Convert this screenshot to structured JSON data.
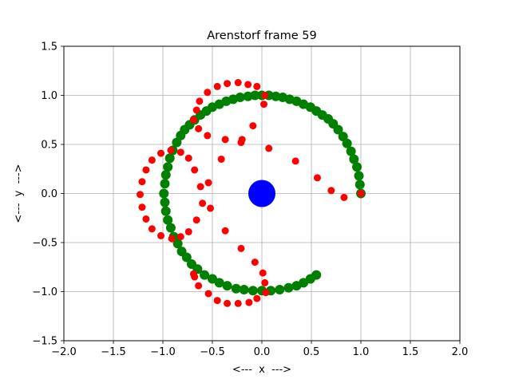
{
  "chart_data": {
    "type": "scatter",
    "title": "Arenstorf frame 59",
    "xlabel": "<---  x  --->",
    "ylabel": "<---  y  --->",
    "xlim": [
      -2.0,
      2.0
    ],
    "ylim": [
      -1.5,
      1.5
    ],
    "xticks": [
      -2.0,
      -1.5,
      -1.0,
      -0.5,
      0.0,
      0.5,
      1.0,
      1.5,
      2.0
    ],
    "yticks": [
      -1.5,
      -1.0,
      -0.5,
      0.0,
      0.5,
      1.0,
      1.5
    ],
    "xtick_labels": [
      "−2.0",
      "−1.5",
      "−1.0",
      "−0.5",
      "0.0",
      "0.5",
      "1.0",
      "1.5",
      "2.0"
    ],
    "ytick_labels": [
      "−1.5",
      "−1.0",
      "−0.5",
      "0.0",
      "0.5",
      "1.0",
      "1.5"
    ],
    "grid": true,
    "series": [
      {
        "color": "#008000",
        "marker_size": "medium",
        "points": [
          [
            1.0,
            0.0
          ],
          [
            0.99,
            0.09
          ],
          [
            0.98,
            0.18
          ],
          [
            0.96,
            0.27
          ],
          [
            0.93,
            0.35
          ],
          [
            0.9,
            0.43
          ],
          [
            0.86,
            0.51
          ],
          [
            0.82,
            0.58
          ],
          [
            0.77,
            0.65
          ],
          [
            0.72,
            0.71
          ],
          [
            0.67,
            0.76
          ],
          [
            0.61,
            0.8
          ],
          [
            0.55,
            0.84
          ],
          [
            0.49,
            0.88
          ],
          [
            0.42,
            0.91
          ],
          [
            0.35,
            0.94
          ],
          [
            0.28,
            0.96
          ],
          [
            0.21,
            0.98
          ],
          [
            0.14,
            0.99
          ],
          [
            0.07,
            1.0
          ],
          [
            0.0,
            1.0
          ],
          [
            -0.07,
            1.0
          ],
          [
            -0.14,
            0.99
          ],
          [
            -0.22,
            0.98
          ],
          [
            -0.29,
            0.96
          ],
          [
            -0.36,
            0.94
          ],
          [
            -0.43,
            0.91
          ],
          [
            -0.5,
            0.88
          ],
          [
            -0.56,
            0.84
          ],
          [
            -0.62,
            0.8
          ],
          [
            -0.68,
            0.75
          ],
          [
            -0.73,
            0.7
          ],
          [
            -0.78,
            0.65
          ],
          [
            -0.82,
            0.59
          ],
          [
            -0.86,
            0.52
          ],
          [
            -0.9,
            0.44
          ],
          [
            -0.93,
            0.36
          ],
          [
            -0.95,
            0.27
          ],
          [
            -0.97,
            0.19
          ],
          [
            -0.98,
            0.1
          ],
          [
            -0.99,
            0.0
          ],
          [
            -0.98,
            -0.09
          ],
          [
            -0.97,
            -0.18
          ],
          [
            -0.95,
            -0.27
          ],
          [
            -0.92,
            -0.35
          ],
          [
            -0.89,
            -0.44
          ],
          [
            -0.85,
            -0.51
          ],
          [
            -0.81,
            -0.59
          ],
          [
            -0.76,
            -0.65
          ],
          [
            -0.71,
            -0.72
          ],
          [
            -0.65,
            -0.77
          ],
          [
            -0.58,
            -0.83
          ],
          [
            -0.5,
            -0.87
          ],
          [
            -0.43,
            -0.91
          ],
          [
            -0.35,
            -0.94
          ],
          [
            -0.26,
            -0.97
          ],
          [
            -0.18,
            -0.98
          ],
          [
            -0.09,
            -0.99
          ],
          [
            0.0,
            -0.99
          ],
          [
            0.09,
            -0.99
          ],
          [
            0.18,
            -0.98
          ],
          [
            0.27,
            -0.96
          ],
          [
            0.35,
            -0.94
          ],
          [
            0.42,
            -0.91
          ],
          [
            0.49,
            -0.87
          ],
          [
            0.55,
            -0.83
          ]
        ]
      },
      {
        "color": "#ff0000",
        "marker_size": "small",
        "points": [
          [
            1.0,
            0.0
          ],
          [
            0.83,
            -0.04
          ],
          [
            0.7,
            0.03
          ],
          [
            0.56,
            0.16
          ],
          [
            0.34,
            0.33
          ],
          [
            0.07,
            0.46
          ],
          [
            -0.21,
            0.52
          ],
          [
            -0.41,
            0.35
          ],
          [
            -0.54,
            0.11
          ],
          [
            -0.6,
            -0.1
          ],
          [
            -0.62,
            0.07
          ],
          [
            -0.66,
            -0.27
          ],
          [
            -0.68,
            0.24
          ],
          [
            -0.74,
            -0.39
          ],
          [
            -0.74,
            0.36
          ],
          [
            -0.82,
            -0.44
          ],
          [
            -0.82,
            0.42
          ],
          [
            -0.91,
            -0.46
          ],
          [
            -0.92,
            0.44
          ],
          [
            -1.02,
            -0.43
          ],
          [
            -1.02,
            0.41
          ],
          [
            -1.11,
            -0.36
          ],
          [
            -1.11,
            0.34
          ],
          [
            -1.17,
            -0.26
          ],
          [
            -1.17,
            0.24
          ],
          [
            -1.21,
            -0.14
          ],
          [
            -1.21,
            0.12
          ],
          [
            -1.23,
            -0.01
          ],
          [
            -0.69,
            0.75
          ],
          [
            -0.66,
            0.85
          ],
          [
            -0.63,
            0.94
          ],
          [
            -0.55,
            1.03
          ],
          [
            -0.45,
            1.09
          ],
          [
            -0.35,
            1.12
          ],
          [
            -0.24,
            1.13
          ],
          [
            -0.14,
            1.11
          ],
          [
            -0.05,
            1.09
          ],
          [
            0.03,
            1.0
          ],
          [
            0.02,
            0.91
          ],
          [
            -0.09,
            0.69
          ],
          [
            -0.2,
            0.55
          ],
          [
            -0.37,
            0.55
          ],
          [
            -0.55,
            0.59
          ],
          [
            -0.64,
            0.66
          ],
          [
            -0.69,
            -0.82
          ],
          [
            -0.64,
            -0.94
          ],
          [
            -0.54,
            -1.02
          ],
          [
            -0.45,
            -1.09
          ],
          [
            -0.35,
            -1.12
          ],
          [
            -0.24,
            -1.12
          ],
          [
            -0.13,
            -1.11
          ],
          [
            -0.05,
            -1.07
          ],
          [
            0.04,
            -1.01
          ],
          [
            0.03,
            -0.91
          ],
          [
            0.01,
            -0.81
          ],
          [
            -0.07,
            -0.7
          ],
          [
            -0.21,
            -0.56
          ],
          [
            -0.37,
            -0.38
          ],
          [
            -0.52,
            -0.15
          ],
          [
            -0.68,
            -0.85
          ]
        ]
      },
      {
        "color": "#0000ff",
        "marker_size": "large",
        "points": [
          [
            0.0,
            0.0
          ]
        ]
      }
    ]
  }
}
